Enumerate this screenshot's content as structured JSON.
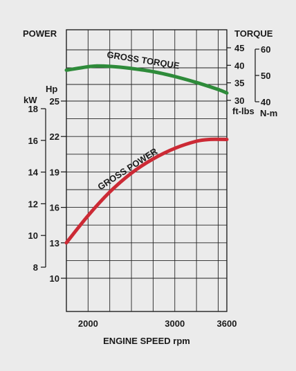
{
  "chart_data": {
    "type": "line",
    "top_left_label": "POWER",
    "top_right_label": "TORQUE",
    "xlabel": "ENGINE SPEED rpm",
    "x_ticks": [
      "2000",
      "3000",
      "3600"
    ],
    "xlim": [
      1750,
      3600
    ],
    "power_axis": {
      "hp_unit": "Hp",
      "hp_ticks": [
        "25",
        "22",
        "19",
        "16",
        "13",
        "10"
      ],
      "hp_range": [
        10,
        25
      ],
      "kw_unit": "kW",
      "kw_ticks": [
        "18",
        "16",
        "14",
        "12",
        "10",
        "8"
      ],
      "kw_range": [
        8,
        18
      ]
    },
    "torque_axis": {
      "ftlbs_unit": "ft-lbs",
      "ftlbs_ticks": [
        "45",
        "40",
        "35",
        "30"
      ],
      "ftlbs_range": [
        30,
        45
      ],
      "nm_unit": "N-m",
      "nm_ticks": [
        "60",
        "50",
        "40"
      ],
      "nm_range": [
        40,
        60
      ]
    },
    "series": [
      {
        "name": "GROSS TORQUE",
        "unit": "ft-lbs",
        "color": "#2e8b3a",
        "x": [
          1750,
          2000,
          2100,
          2250,
          2500,
          2750,
          3000,
          3250,
          3500,
          3600
        ],
        "values": [
          38.6,
          39.6,
          39.8,
          39.7,
          39.1,
          38.2,
          36.8,
          35.1,
          33.1,
          32.1
        ]
      },
      {
        "name": "GROSS POWER",
        "unit": "Hp",
        "color": "#cc2a35",
        "x": [
          1750,
          2000,
          2250,
          2500,
          2750,
          3000,
          3250,
          3400,
          3600
        ],
        "values": [
          13.0,
          15.3,
          17.3,
          18.9,
          20.1,
          21.0,
          21.6,
          21.75,
          21.75
        ]
      }
    ]
  }
}
